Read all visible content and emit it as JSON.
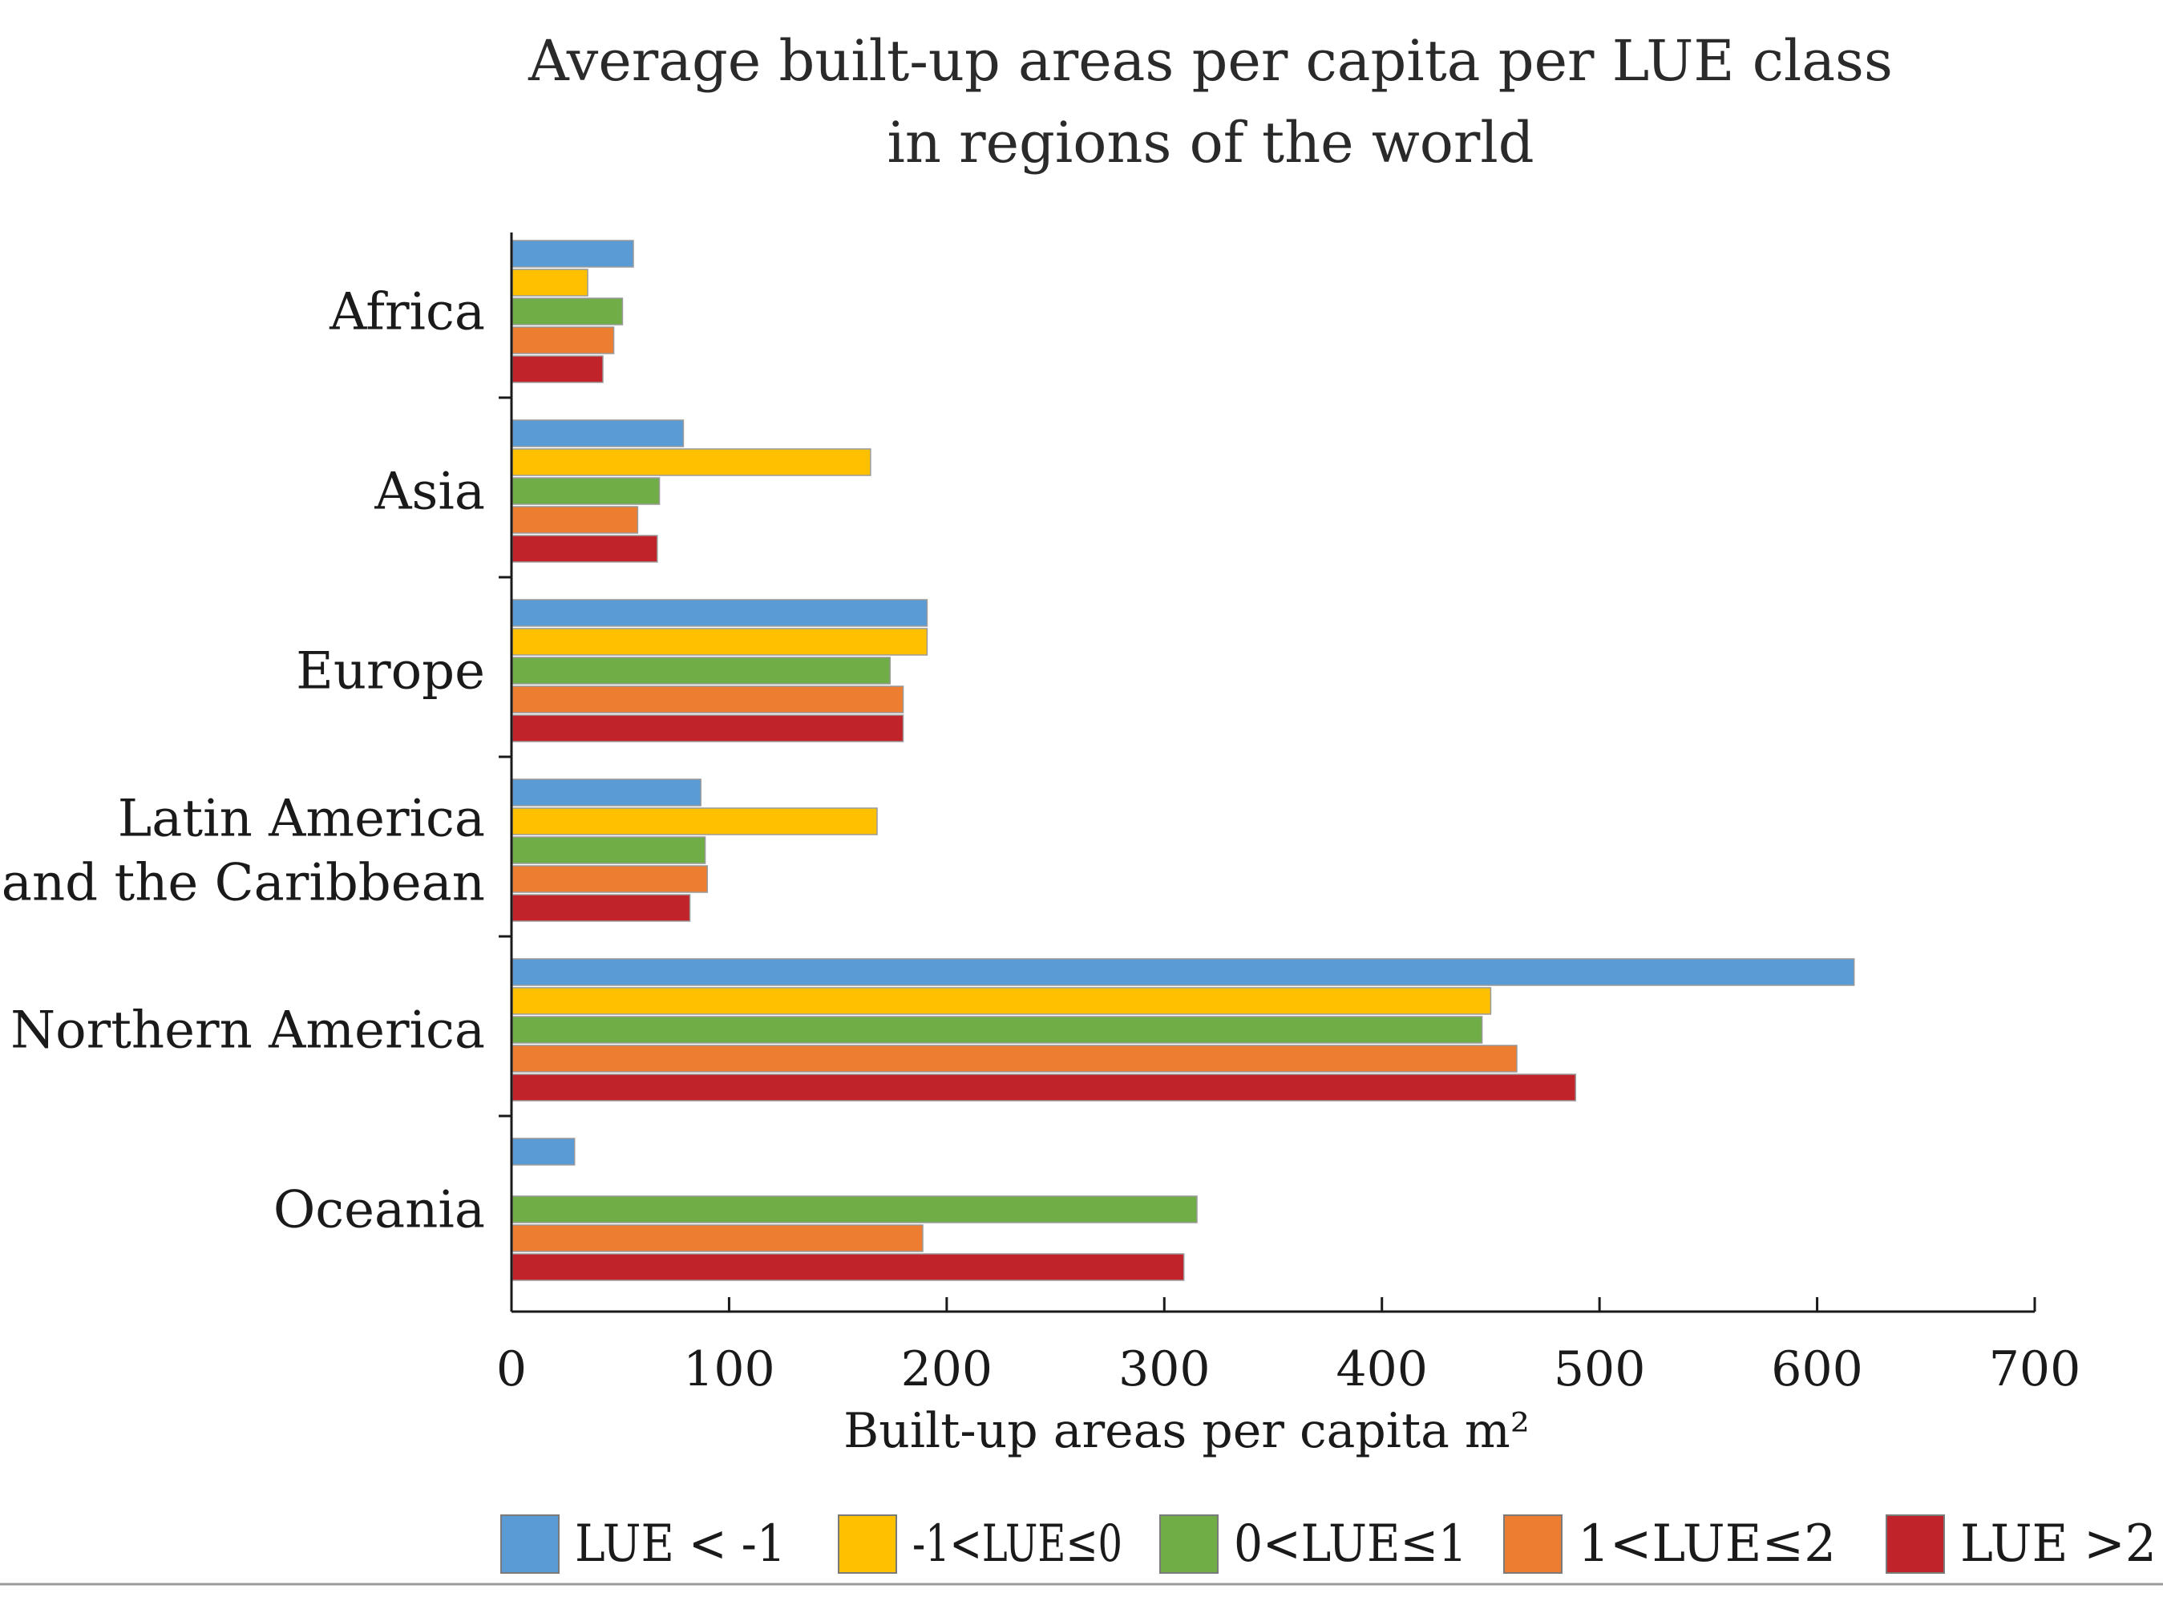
{
  "chart_data": {
    "type": "bar",
    "orientation": "horizontal",
    "title": "Average built-up areas per capita per LUE class in regions of the world",
    "title_lines": [
      "Average built-up areas per capita per LUE class",
      "in regions of the world"
    ],
    "xlabel": "Built-up areas per capita m²",
    "ylabel": "",
    "xlim": [
      0,
      700
    ],
    "xticks": [
      0,
      100,
      200,
      300,
      400,
      500,
      600,
      700
    ],
    "grid": false,
    "legend_position": "bottom",
    "categories": [
      "Africa",
      "Asia",
      "Europe",
      "Latin America and the Caribbean",
      "Northern America",
      "Oceania"
    ],
    "category_lines": [
      [
        "Africa"
      ],
      [
        "Asia"
      ],
      [
        "Europe"
      ],
      [
        "Latin America",
        "and the Caribbean"
      ],
      [
        "Northern America"
      ],
      [
        "Oceania"
      ]
    ],
    "series": [
      {
        "name": "LUE < -1",
        "color": "#5b9bd5",
        "values": [
          56,
          79,
          191,
          87,
          617,
          29
        ]
      },
      {
        "name": "-1<LUE≤0",
        "color": "#ffc000",
        "values": [
          35,
          165,
          191,
          168,
          450,
          null
        ]
      },
      {
        "name": "0<LUE≤1",
        "color": "#70ad47",
        "values": [
          51,
          68,
          174,
          89,
          446,
          315
        ]
      },
      {
        "name": "1<LUE≤2",
        "color": "#ed7d31",
        "values": [
          47,
          58,
          180,
          90,
          462,
          189
        ]
      },
      {
        "name": "LUE >2",
        "color": "#c0232a",
        "values": [
          42,
          67,
          180,
          82,
          489,
          309
        ]
      }
    ]
  }
}
